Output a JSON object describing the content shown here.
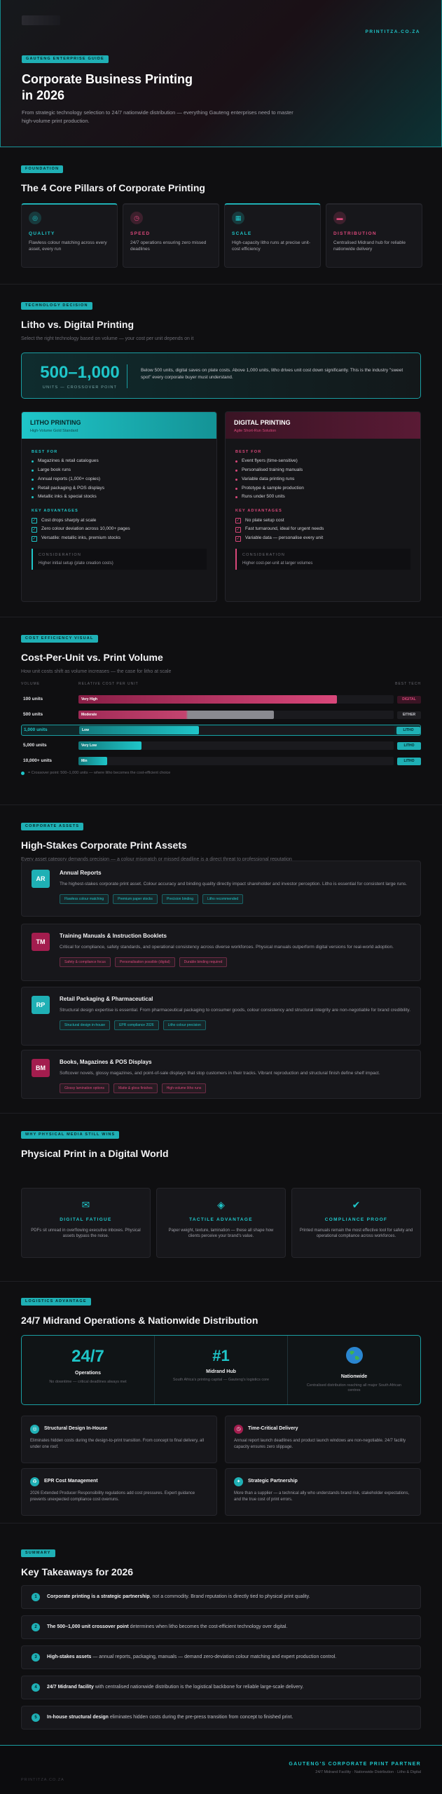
{
  "hero": {
    "site": "PRINTITZA.CO.ZA",
    "chip": "GAUTENG ENTERPRISE GUIDE",
    "title_line1": "Corporate Business Printing",
    "title_line2": "in 2026",
    "desc": "From strategic technology selection to 24/7 nationwide distribution — everything Gauteng enterprises need to master high-volume print production."
  },
  "pillars": {
    "chip": "FOUNDATION",
    "title": "The 4 Core Pillars of Corporate Printing",
    "items": [
      {
        "icon": "target-icon",
        "glyph": "◎",
        "title": "QUALITY",
        "text": "Flawless colour matching across every asset, every run",
        "color": "#1fc6c9"
      },
      {
        "icon": "clock-icon",
        "glyph": "◷",
        "title": "SPEED",
        "text": "24/7 operations ensuring zero missed deadlines",
        "color": "#d9477a"
      },
      {
        "icon": "grid-icon",
        "glyph": "▦",
        "title": "SCALE",
        "text": "High-capacity litho runs at precise unit-cost efficiency",
        "color": "#1fc6c9"
      },
      {
        "icon": "truck-icon",
        "glyph": "▬",
        "title": "DISTRIBUTION",
        "text": "Centralised Midrand hub for reliable nationwide delivery",
        "color": "#d9477a"
      }
    ]
  },
  "litho": {
    "chip": "TECHNOLOGY DECISION",
    "title": "Litho vs. Digital Printing",
    "sub": "Select the right technology based on volume — your cost per unit depends on it",
    "big": "500–1,000",
    "big_label": "UNITS — CROSSOVER POINT",
    "cross_text": "Below 500 units, digital saves on plate costs. Above 1,000 units, litho drives unit cost down significantly. This is the industry \"sweet spot\" every corporate buyer must understand.",
    "litho_col": {
      "title": "LITHO PRINTING",
      "subtitle": "High-Volume Gold Standard",
      "best": "BEST FOR",
      "best_items": [
        "Magazines & retail catalogues",
        "Large book runs",
        "Annual reports (1,000+ copies)",
        "Retail packaging & POS displays",
        "Metallic inks & special stocks"
      ],
      "adv": "KEY ADVANTAGES",
      "adv_items": [
        "Cost drops sharply at scale",
        "Zero colour deviation across 10,000+ pages",
        "Versatile: metallic inks, premium stocks"
      ],
      "cons_label": "CONSIDERATION",
      "cons": "Higher initial setup (plate creation costs)"
    },
    "digital_col": {
      "title": "DIGITAL PRINTING",
      "subtitle": "Agile Short-Run Solution",
      "best": "BEST FOR",
      "best_items": [
        "Event flyers (time-sensitive)",
        "Personalised training manuals",
        "Variable data printing runs",
        "Prototype & sample production",
        "Runs under 500 units"
      ],
      "adv": "KEY ADVANTAGES",
      "adv_items": [
        "No plate setup cost",
        "Fast turnaround, ideal for urgent needs",
        "Variable data — personalise every unit"
      ],
      "cons_label": "CONSIDERATION",
      "cons": "Higher cost-per-unit at larger volumes"
    }
  },
  "cost": {
    "chip": "COST EFFICIENCY VISUAL",
    "title": "Cost-Per-Unit vs. Print Volume",
    "sub": "How unit costs shift as volume increases — the case for litho at scale",
    "h_volume": "VOLUME",
    "h_rel": "RELATIVE COST PER UNIT",
    "h_best": "BEST TECH",
    "rows": [
      {
        "label": "100 units",
        "bar": "Very High",
        "value": 0.82,
        "best": "DIGITAL",
        "kind": "digital"
      },
      {
        "label": "500 units",
        "bar": "Moderate",
        "value": 0.62,
        "best": "EITHER",
        "kind": "either"
      },
      {
        "label": "1,000 units",
        "bar": "Low",
        "value": 0.38,
        "best": "LITHO",
        "kind": "litho"
      },
      {
        "label": "5,000 units",
        "bar": "Very Low",
        "value": 0.2,
        "best": "LITHO",
        "kind": "litho"
      },
      {
        "label": "10,000+ units",
        "bar": "Min",
        "value": 0.09,
        "best": "LITHO",
        "kind": "litho"
      }
    ],
    "note": "= Crossover point: 500–1,000 units — where litho becomes the cost-efficient choice"
  },
  "assets": {
    "chip": "CORPORATE ASSETS",
    "title": "High-Stakes Corporate Print Assets",
    "sub": "Every asset category demands precision — a colour mismatch or missed deadline is a direct threat to professional reputation",
    "items": [
      {
        "badge": "AR",
        "title": "Annual Reports",
        "desc": "The highest-stakes corporate print asset. Colour accuracy and binding quality directly impact shareholder and investor perception. Litho is essential for consistent large runs.",
        "tags": [
          "Flawless colour matching",
          "Premium paper stocks",
          "Precision binding",
          "Litho recommended"
        ],
        "color": "#1fb0b5"
      },
      {
        "badge": "TM",
        "title": "Training Manuals & Instruction Booklets",
        "desc": "Critical for compliance, safety standards, and operational consistency across diverse workforces. Physical manuals outperform digital versions for real-world adoption.",
        "tags": [
          "Safety & compliance focus",
          "Personalisation possible (digital)",
          "Durable binding required"
        ],
        "color": "#a31d4e"
      },
      {
        "badge": "RP",
        "title": "Retail Packaging & Pharmaceutical",
        "desc": "Structural design expertise is essential. From pharmaceutical packaging to consumer goods, colour consistency and structural integrity are non-negotiable for brand credibility.",
        "tags": [
          "Structural design in-house",
          "EPR compliance 2026",
          "Litho colour precision"
        ],
        "color": "#1fb0b5"
      },
      {
        "badge": "BM",
        "title": "Books, Magazines & POS Displays",
        "desc": "Softcover novels, glossy magazines, and point-of-sale displays that stop customers in their tracks. Vibrant reproduction and structural finish define shelf impact.",
        "tags": [
          "Glossy lamination options",
          "Matte & gloss finishes",
          "High-volume litho runs"
        ],
        "color": "#a31d4e"
      }
    ]
  },
  "physical": {
    "chip": "WHY PHYSICAL MEDIA STILL WINS",
    "title": "Physical Print in a Digital World",
    "items": [
      {
        "icon": "mail-icon",
        "glyph": "✉",
        "title": "DIGITAL FATIGUE",
        "text": "PDFs sit unread in overflowing executive inboxes. Physical assets bypass the noise."
      },
      {
        "icon": "diamond-icon",
        "glyph": "◈",
        "title": "TACTILE ADVANTAGE",
        "text": "Paper weight, texture, lamination — these all shape how clients perceive your brand's value."
      },
      {
        "icon": "check-icon",
        "glyph": "✔",
        "title": "COMPLIANCE PROOF",
        "text": "Printed manuals remain the most effective tool for safety and operational compliance across workforces."
      }
    ]
  },
  "midrand": {
    "chip": "LOGISTICS ADVANTAGE",
    "title": "24/7 Midrand Operations & Nationwide Distribution",
    "stats": [
      {
        "big": "24/7",
        "label": "Operations",
        "desc": "No downtime — critical deadlines always met"
      },
      {
        "big": "#1",
        "label": "Midrand Hub",
        "desc": "South Africa's printing capital — Gauteng's logistics core"
      },
      {
        "big": "globe",
        "label": "Nationwide",
        "desc": "Centralised distribution reaching all major South African centres"
      }
    ],
    "ops": [
      {
        "icon": "target-icon",
        "glyph": "◎",
        "title": "Structural Design In-House",
        "text": "Eliminates hidden costs during the design-to-print transition. From concept to final delivery, all under one roof.",
        "color": "#1fb0b5"
      },
      {
        "icon": "clock-icon",
        "glyph": "◷",
        "title": "Time-Critical Delivery",
        "text": "Annual report launch deadlines and product launch windows are non-negotiable. 24/7 facility capacity ensures zero slippage.",
        "color": "#a31d4e"
      },
      {
        "icon": "recycle-icon",
        "glyph": "♻",
        "title": "EPR Cost Management",
        "text": "2026 Extended Producer Responsibility regulations add cost pressures. Expert guidance prevents unexpected compliance cost overruns.",
        "color": "#1fb0b5"
      },
      {
        "icon": "handshake-icon",
        "glyph": "✦",
        "title": "Strategic Partnership",
        "text": "More than a supplier — a technical ally who understands brand risk, stakeholder expectations, and the true cost of print errors.",
        "color": "#1fb0b5"
      }
    ]
  },
  "takeaways": {
    "chip": "SUMMARY",
    "title": "Key Takeaways for 2026",
    "items": [
      {
        "n": "1",
        "b": "Corporate printing is a strategic partnership",
        "t": ", not a commodity. Brand reputation is directly tied to physical print quality."
      },
      {
        "n": "2",
        "b": "The 500–1,000 unit crossover point",
        "t": " determines when litho becomes the cost-efficient technology over digital."
      },
      {
        "n": "3",
        "b": "High-stakes assets",
        "t": " — annual reports, packaging, manuals — demand zero-deviation colour matching and expert production control."
      },
      {
        "n": "4",
        "b": "24/7 Midrand facility",
        "t": " with centralised nationwide distribution is the logistical backbone for reliable large-scale delivery."
      },
      {
        "n": "5",
        "b": "In-house structural design",
        "t": " eliminates hidden costs during the pre-press transition from concept to finished print."
      }
    ]
  },
  "footer": {
    "partner": "GAUTENG'S CORPORATE PRINT PARTNER",
    "tagline": "24/7 Midrand Facility · Nationwide Distribution · Litho & Digital",
    "site": "PRINTITZA.CO.ZA"
  },
  "colors": {
    "teal": "#1fc6c9",
    "pink": "#d9477a",
    "dark": "#0f0f11"
  }
}
